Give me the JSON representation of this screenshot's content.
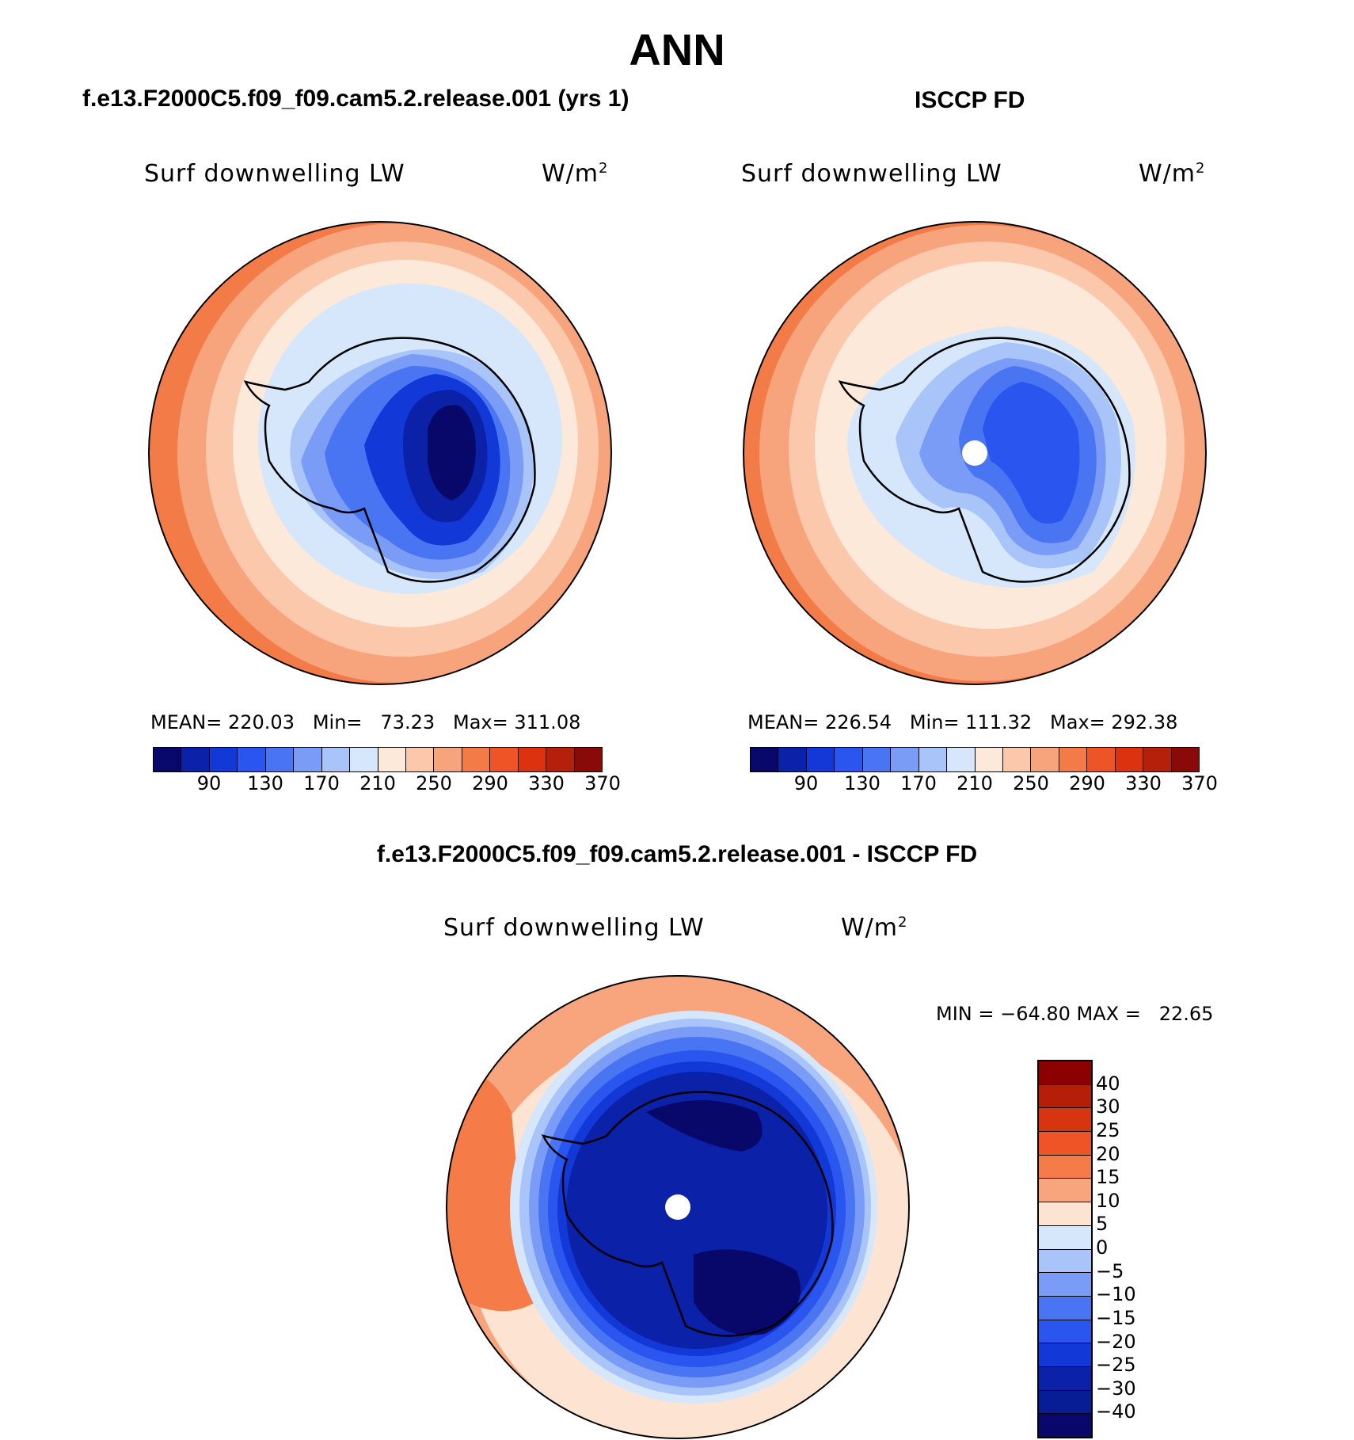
{
  "title": "ANN",
  "panels": [
    {
      "title": "f.e13.F2000C5.f09_f09.cam5.2.release.001 (yrs 1)",
      "field": "Surf downwelling LW",
      "units": "W/m",
      "units_exp": "2",
      "stats": "MEAN= 220.03   Min=   73.23   Max= 311.08",
      "colorbar_labels": [
        "90",
        "130",
        "170",
        "210",
        "250",
        "290",
        "330",
        "370"
      ]
    },
    {
      "title": "ISCCP FD",
      "field": "Surf downwelling LW",
      "units": "W/m",
      "units_exp": "2",
      "stats": "MEAN= 226.54   Min= 111.32   Max= 292.38",
      "colorbar_labels": [
        "90",
        "130",
        "170",
        "210",
        "250",
        "290",
        "330",
        "370"
      ]
    },
    {
      "title": "f.e13.F2000C5.f09_f09.cam5.2.release.001 - ISCCP FD",
      "field": "Surf downwelling LW",
      "units": "W/m",
      "units_exp": "2",
      "stats": "MIN = −64.80 MAX =   22.65",
      "colorbar_labels": [
        "40",
        "30",
        "25",
        "20",
        "15",
        "10",
        "5",
        "0",
        "−5",
        "−10",
        "−15",
        "−20",
        "−25",
        "−30",
        "−40"
      ]
    }
  ],
  "colors": {
    "abs_scale": [
      "#08086b",
      "#0b22a8",
      "#1238d8",
      "#2a55ee",
      "#4a75f2",
      "#7a9cf7",
      "#a9c4f9",
      "#d6e6fb",
      "#fde9da",
      "#fbc8ac",
      "#f7a47c",
      "#f37b48",
      "#ef5426",
      "#dc3210",
      "#b4200a",
      "#8a0a0a"
    ],
    "diff_scale": [
      "#8b0000",
      "#b51e08",
      "#d6350f",
      "#ef5426",
      "#f57c48",
      "#f8a57e",
      "#fde3d1",
      "#d6e6fb",
      "#a9c4f9",
      "#7a9cf7",
      "#4a75f2",
      "#2a55ee",
      "#1238d8",
      "#0b22a8",
      "#061d96",
      "#08086b"
    ]
  }
}
